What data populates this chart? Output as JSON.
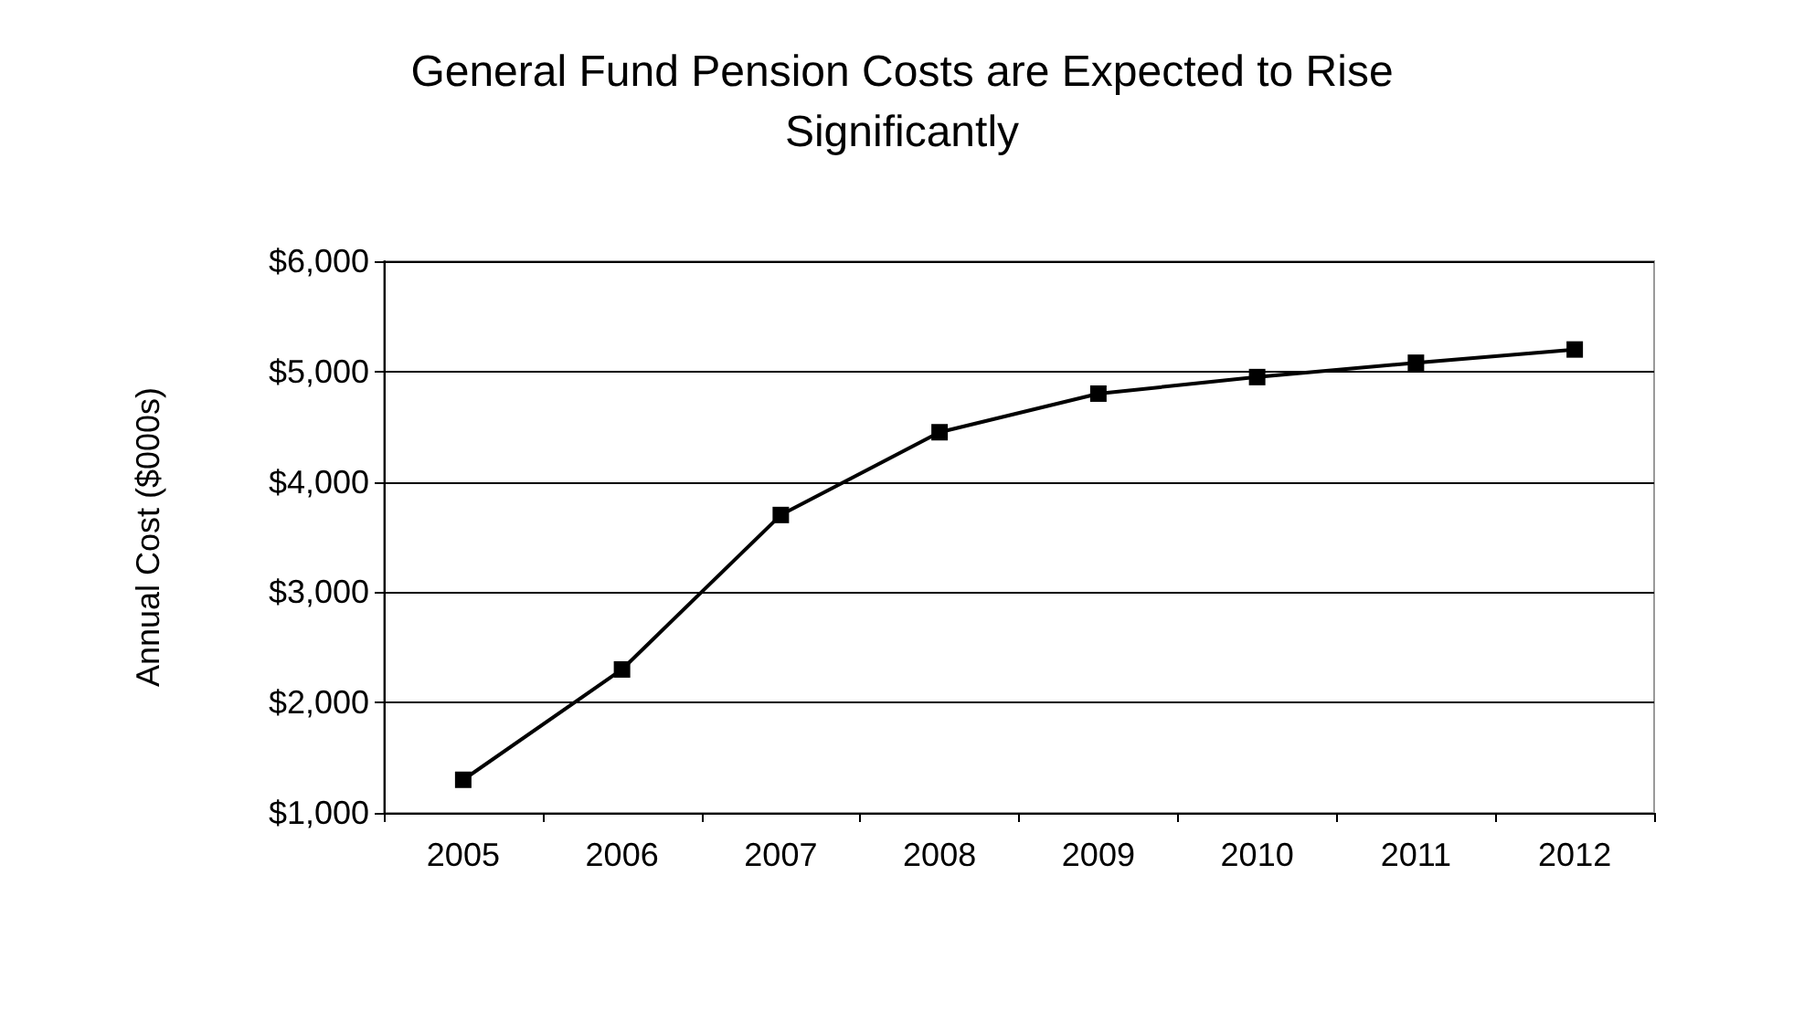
{
  "chart_data": {
    "type": "line",
    "title": "General Fund Pension Costs are Expected to Rise\nSignificantly",
    "ylabel": "Annual Cost ($000s)",
    "categories": [
      "2005",
      "2006",
      "2007",
      "2008",
      "2009",
      "2010",
      "2011",
      "2012"
    ],
    "series": [
      {
        "color": "#000000",
        "values": [
          1300,
          2300,
          3700,
          4450,
          4800,
          4950,
          5080,
          5200
        ]
      }
    ],
    "ylim": [
      1000,
      6000
    ],
    "yticks": [
      {
        "value": 1000,
        "label": "$1,000"
      },
      {
        "value": 2000,
        "label": "$2,000"
      },
      {
        "value": 3000,
        "label": "$3,000"
      },
      {
        "value": 4000,
        "label": "$4,000"
      },
      {
        "value": 5000,
        "label": "$5,000"
      },
      {
        "value": 6000,
        "label": "$6,000"
      }
    ],
    "grid": "y",
    "marker": "square",
    "line_style": "solid"
  }
}
